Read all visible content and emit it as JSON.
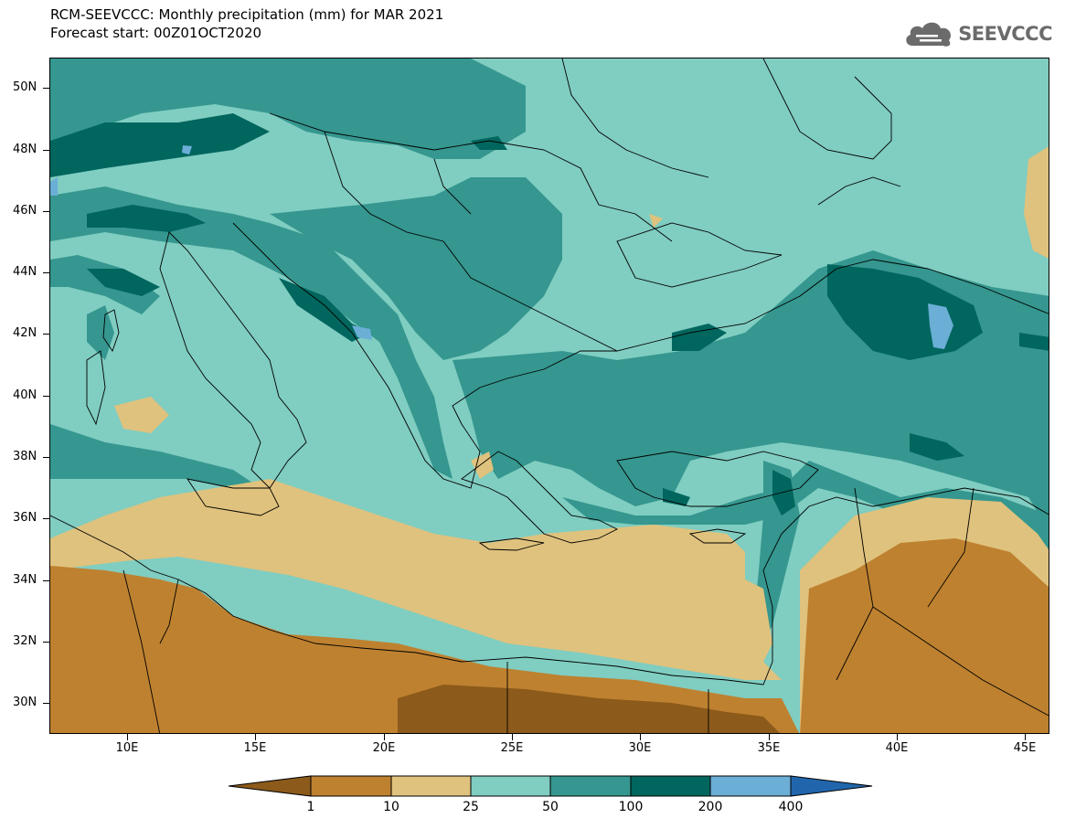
{
  "header": {
    "title_line1": "RCM-SEEVCCC: Monthly precipitation (mm) for MAR 2021",
    "title_line2": "Forecast start: 00Z01OCT2020"
  },
  "logo": {
    "text": "SEEVCCC",
    "icon": "cloud-icon"
  },
  "map": {
    "y_ticks": [
      "50N",
      "48N",
      "46N",
      "44N",
      "42N",
      "40N",
      "38N",
      "36N",
      "34N",
      "32N",
      "30N"
    ],
    "x_ticks": [
      "10E",
      "15E",
      "20E",
      "25E",
      "30E",
      "35E",
      "40E",
      "45E"
    ]
  },
  "colors": {
    "below_1": "#8c5a1a",
    "c1_10": "#be8130",
    "c10_25": "#dfc27d",
    "c25_50": "#80cdc1",
    "c50_100": "#35978f",
    "c100_200": "#01665e",
    "c200_400": "#6baed6",
    "above_400": "#2166ac"
  },
  "colorbar": {
    "labels": [
      "1",
      "10",
      "25",
      "50",
      "100",
      "200",
      "400"
    ]
  }
}
